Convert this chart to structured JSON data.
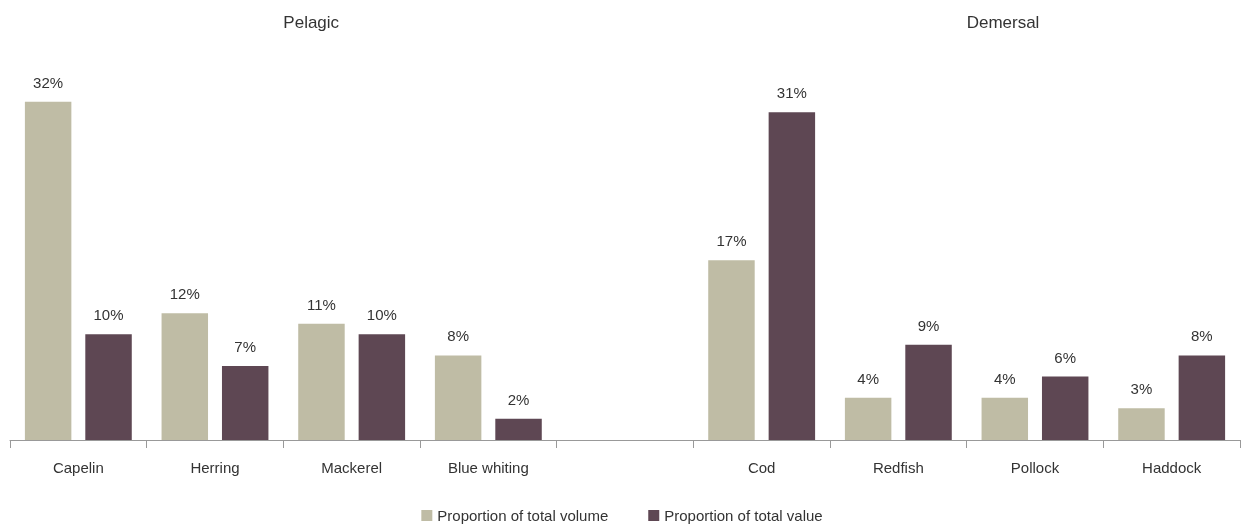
{
  "chart_data": {
    "type": "bar",
    "categories": [
      "Capelin",
      "Herring",
      "Mackerel",
      "Blue whiting",
      null,
      "Cod",
      "Redfish",
      "Pollock",
      "Haddock"
    ],
    "series": [
      {
        "name": "Proportion of total volume",
        "color": "#bfbca5",
        "values": [
          32,
          12,
          11,
          8,
          null,
          17,
          4,
          4,
          3
        ],
        "value_labels": [
          "32%",
          "12%",
          "11%",
          "8%",
          null,
          "17%",
          "4%",
          "4%",
          "3%"
        ]
      },
      {
        "name": "Proportion of total value",
        "color": "#5e4753",
        "values": [
          10,
          7,
          10,
          2,
          null,
          31,
          9,
          6,
          8
        ],
        "value_labels": [
          "10%",
          "7%",
          "10%",
          "2%",
          null,
          "31%",
          "9%",
          "6%",
          "8%"
        ]
      }
    ],
    "annotations": [
      "Pelagic",
      "Demersal"
    ],
    "tick_labels": "x",
    "grid": false,
    "legend": "bottom"
  }
}
